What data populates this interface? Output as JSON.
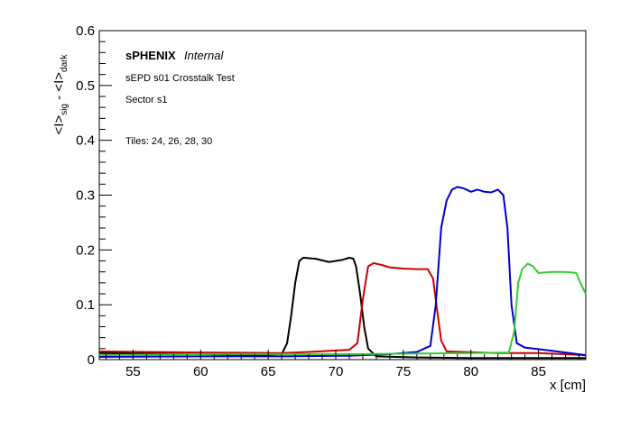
{
  "chart_data": {
    "type": "line",
    "title": "",
    "xlabel": "x [cm]",
    "ylabel": "<I>_sig - <I>_dark",
    "ylabel_parts": {
      "a": "<I>",
      "a_sub": "sig",
      "mid": " - ",
      "b": "<I>",
      "b_sub": "dark"
    },
    "xlim": [
      52.5,
      88.5
    ],
    "ylim": [
      0,
      0.6
    ],
    "x_ticks": [
      55,
      60,
      65,
      70,
      75,
      80,
      85
    ],
    "x_tick_labels": [
      "55",
      "60",
      "65",
      "70",
      "75",
      "80",
      "85"
    ],
    "y_ticks": [
      0,
      0.1,
      0.2,
      0.3,
      0.4,
      0.5,
      0.6
    ],
    "y_tick_labels": [
      "0",
      "0.1",
      "0.2",
      "0.3",
      "0.4",
      "0.5",
      "0.6"
    ],
    "grid": false,
    "legend": "none",
    "annotations": {
      "experiment": "sPHENIX",
      "status": "Internal",
      "line1": "sEPD s01 Crosstalk Test",
      "line2": "Sector s1",
      "line3": "Tiles: 24, 26, 28, 30"
    },
    "series": [
      {
        "color": "#000000",
        "points": [
          [
            52.5,
            0.012
          ],
          [
            60,
            0.01
          ],
          [
            64,
            0.008
          ],
          [
            66,
            0.01
          ],
          [
            66.4,
            0.03
          ],
          [
            66.7,
            0.08
          ],
          [
            67,
            0.14
          ],
          [
            67.3,
            0.18
          ],
          [
            67.6,
            0.186
          ],
          [
            68,
            0.185
          ],
          [
            68.5,
            0.184
          ],
          [
            69,
            0.181
          ],
          [
            69.5,
            0.178
          ],
          [
            70,
            0.18
          ],
          [
            70.5,
            0.182
          ],
          [
            71,
            0.186
          ],
          [
            71.3,
            0.184
          ],
          [
            71.5,
            0.17
          ],
          [
            71.8,
            0.12
          ],
          [
            72.1,
            0.06
          ],
          [
            72.4,
            0.02
          ],
          [
            73,
            0.006
          ],
          [
            76,
            0.004
          ],
          [
            80,
            0.003
          ],
          [
            88.5,
            0.003
          ]
        ]
      },
      {
        "color": "#cc0000",
        "points": [
          [
            52.5,
            0.015
          ],
          [
            60,
            0.013
          ],
          [
            66,
            0.012
          ],
          [
            68,
            0.014
          ],
          [
            71,
            0.018
          ],
          [
            71.6,
            0.03
          ],
          [
            72,
            0.11
          ],
          [
            72.4,
            0.17
          ],
          [
            72.8,
            0.176
          ],
          [
            73.5,
            0.172
          ],
          [
            74,
            0.168
          ],
          [
            75,
            0.166
          ],
          [
            76,
            0.165
          ],
          [
            76.8,
            0.165
          ],
          [
            77.2,
            0.148
          ],
          [
            77.5,
            0.09
          ],
          [
            77.8,
            0.035
          ],
          [
            78.2,
            0.015
          ],
          [
            82,
            0.012
          ],
          [
            85,
            0.012
          ],
          [
            88.5,
            0.008
          ]
        ]
      },
      {
        "color": "#0000cc",
        "points": [
          [
            52.5,
            0.005
          ],
          [
            60,
            0.006
          ],
          [
            66,
            0.006
          ],
          [
            71,
            0.007
          ],
          [
            74,
            0.01
          ],
          [
            76,
            0.014
          ],
          [
            77,
            0.025
          ],
          [
            77.4,
            0.1
          ],
          [
            77.8,
            0.24
          ],
          [
            78.2,
            0.29
          ],
          [
            78.6,
            0.31
          ],
          [
            79,
            0.315
          ],
          [
            79.5,
            0.312
          ],
          [
            80,
            0.306
          ],
          [
            80.5,
            0.31
          ],
          [
            81,
            0.306
          ],
          [
            81.5,
            0.305
          ],
          [
            82,
            0.31
          ],
          [
            82.4,
            0.3
          ],
          [
            82.7,
            0.24
          ],
          [
            83,
            0.1
          ],
          [
            83.4,
            0.03
          ],
          [
            84,
            0.022
          ],
          [
            86,
            0.016
          ],
          [
            88.5,
            0.008
          ]
        ]
      },
      {
        "color": "#33cc33",
        "points": [
          [
            52.5,
            0.008
          ],
          [
            60,
            0.01
          ],
          [
            66,
            0.01
          ],
          [
            72,
            0.01
          ],
          [
            76,
            0.011
          ],
          [
            80,
            0.012
          ],
          [
            82.8,
            0.013
          ],
          [
            83.2,
            0.05
          ],
          [
            83.5,
            0.14
          ],
          [
            83.8,
            0.165
          ],
          [
            84.2,
            0.175
          ],
          [
            84.6,
            0.17
          ],
          [
            85,
            0.158
          ],
          [
            86,
            0.16
          ],
          [
            87,
            0.16
          ],
          [
            87.8,
            0.158
          ],
          [
            88.1,
            0.14
          ],
          [
            88.5,
            0.12
          ]
        ]
      }
    ]
  }
}
